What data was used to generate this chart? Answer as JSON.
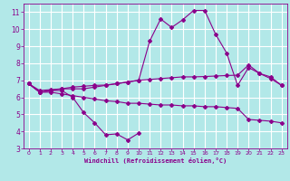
{
  "background_color": "#b2e8e8",
  "grid_color": "#ffffff",
  "line_color": "#8B008B",
  "marker_color": "#8B008B",
  "xlabel": "Windchill (Refroidissement éolien,°C)",
  "xlabel_color": "#8B008B",
  "xlim": [
    -0.5,
    23.5
  ],
  "ylim": [
    3,
    11.5
  ],
  "yticks": [
    3,
    4,
    5,
    6,
    7,
    8,
    9,
    10,
    11
  ],
  "xticks": [
    0,
    1,
    2,
    3,
    4,
    5,
    6,
    7,
    8,
    9,
    10,
    11,
    12,
    13,
    14,
    15,
    16,
    17,
    18,
    19,
    20,
    21,
    22,
    23
  ],
  "series1_x": [
    0,
    1,
    2,
    3,
    4,
    5,
    6,
    7,
    8,
    9,
    10
  ],
  "series1_y": [
    6.8,
    6.3,
    6.4,
    6.4,
    6.0,
    5.1,
    4.5,
    3.8,
    3.85,
    3.5,
    3.9
  ],
  "series2_x": [
    0,
    1,
    2,
    3,
    4,
    5,
    6,
    7,
    8,
    9,
    10,
    11,
    12,
    13,
    14,
    15,
    16,
    17,
    18,
    19,
    20,
    21,
    22,
    23
  ],
  "series2_y": [
    6.8,
    6.3,
    6.4,
    6.5,
    6.5,
    6.5,
    6.6,
    6.7,
    6.8,
    6.9,
    7.0,
    9.3,
    10.6,
    10.1,
    10.55,
    11.1,
    11.1,
    9.7,
    8.6,
    6.7,
    7.75,
    7.4,
    7.1,
    6.7
  ],
  "series3_x": [
    0,
    1,
    2,
    3,
    4,
    5,
    6,
    7,
    8,
    9,
    10,
    11,
    12,
    13,
    14,
    15,
    16,
    17,
    18,
    19,
    20,
    21,
    22,
    23
  ],
  "series3_y": [
    6.8,
    6.3,
    6.3,
    6.2,
    6.1,
    6.0,
    5.9,
    5.8,
    5.75,
    5.65,
    5.65,
    5.6,
    5.55,
    5.55,
    5.5,
    5.5,
    5.45,
    5.45,
    5.4,
    5.35,
    4.7,
    4.65,
    4.6,
    4.5
  ],
  "series4_x": [
    0,
    1,
    2,
    3,
    4,
    5,
    6,
    7,
    8,
    9,
    10,
    11,
    12,
    13,
    14,
    15,
    16,
    17,
    18,
    19,
    20,
    21,
    22,
    23
  ],
  "series4_y": [
    6.8,
    6.4,
    6.45,
    6.5,
    6.6,
    6.65,
    6.7,
    6.72,
    6.8,
    6.9,
    7.0,
    7.05,
    7.1,
    7.15,
    7.2,
    7.2,
    7.22,
    7.25,
    7.28,
    7.3,
    7.9,
    7.4,
    7.2,
    6.7
  ]
}
